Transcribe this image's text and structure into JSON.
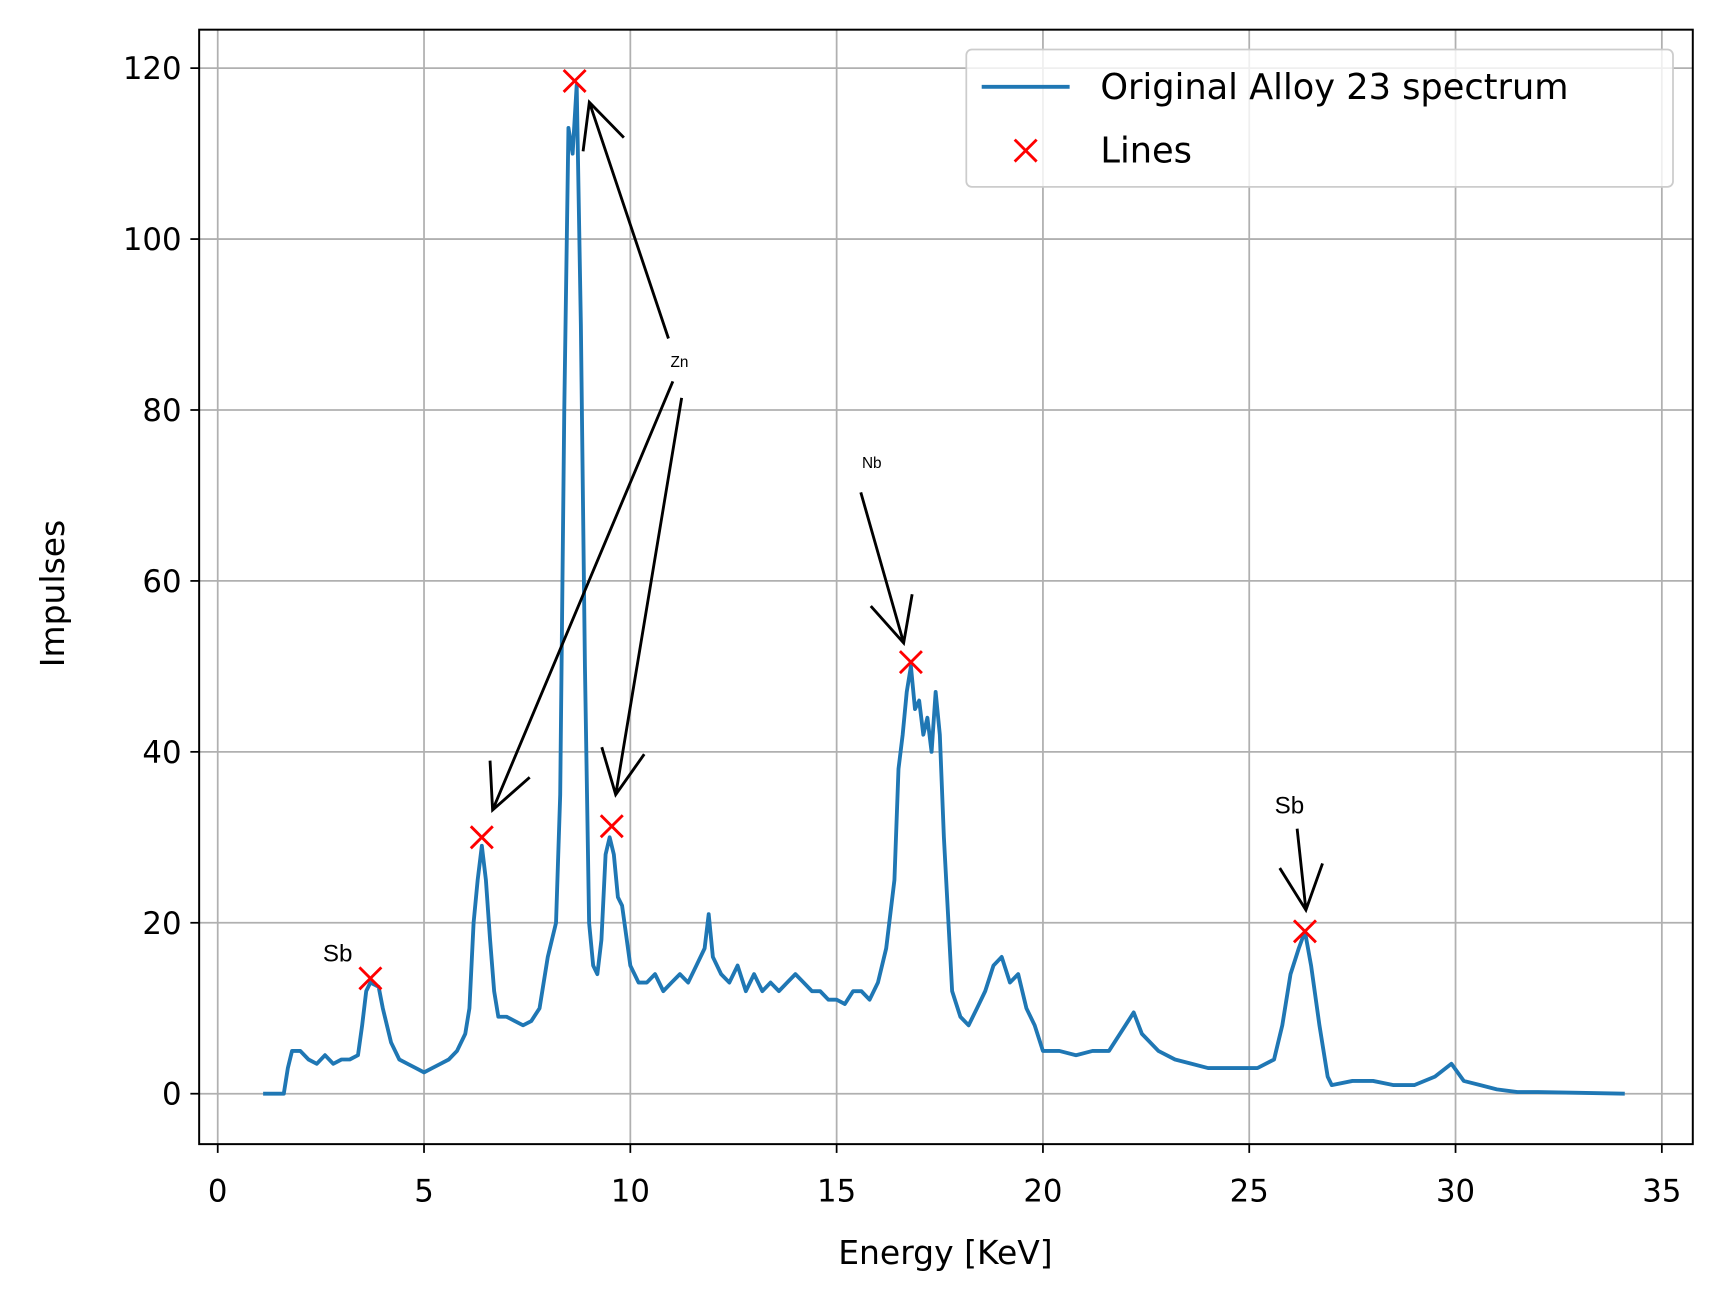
{
  "chart_data": {
    "type": "line",
    "xlabel": "Energy [KeV]",
    "ylabel": "Impulses",
    "xlim": [
      -0.45,
      35.75
    ],
    "ylim": [
      -5.9,
      124.5
    ],
    "xticks": [
      0,
      5,
      10,
      15,
      20,
      25,
      30,
      35
    ],
    "yticks": [
      0,
      20,
      40,
      60,
      80,
      100,
      120
    ],
    "grid": true,
    "legend": "upper right",
    "series": [
      {
        "name": "Original Alloy 23 spectrum",
        "color": "#1f77b4",
        "x": [
          1.1,
          1.5,
          1.6,
          1.7,
          1.8,
          2.0,
          2.2,
          2.4,
          2.6,
          2.8,
          3.0,
          3.2,
          3.4,
          3.5,
          3.6,
          3.7,
          3.9,
          4.0,
          4.2,
          4.4,
          4.6,
          4.8,
          5.0,
          5.2,
          5.4,
          5.6,
          5.8,
          6.0,
          6.1,
          6.2,
          6.3,
          6.4,
          6.5,
          6.6,
          6.7,
          6.8,
          7.0,
          7.2,
          7.4,
          7.6,
          7.8,
          8.0,
          8.2,
          8.3,
          8.4,
          8.5,
          8.6,
          8.7,
          8.8,
          8.9,
          9.0,
          9.1,
          9.2,
          9.3,
          9.4,
          9.5,
          9.6,
          9.7,
          9.8,
          10.0,
          10.2,
          10.4,
          10.6,
          10.8,
          11.0,
          11.2,
          11.4,
          11.6,
          11.8,
          11.9,
          12.0,
          12.2,
          12.4,
          12.6,
          12.8,
          13.0,
          13.2,
          13.4,
          13.6,
          13.8,
          14.0,
          14.2,
          14.4,
          14.6,
          14.8,
          15.0,
          15.2,
          15.4,
          15.6,
          15.8,
          16.0,
          16.2,
          16.4,
          16.5,
          16.6,
          16.7,
          16.8,
          16.9,
          17.0,
          17.1,
          17.2,
          17.3,
          17.4,
          17.5,
          17.6,
          17.8,
          18.0,
          18.2,
          18.4,
          18.6,
          18.8,
          19.0,
          19.2,
          19.4,
          19.6,
          19.8,
          20.0,
          20.4,
          20.8,
          21.2,
          21.6,
          22.0,
          22.2,
          22.4,
          22.8,
          23.2,
          23.6,
          24.0,
          24.4,
          24.8,
          25.2,
          25.6,
          25.8,
          26.0,
          26.2,
          26.35,
          26.5,
          26.7,
          26.9,
          27.0,
          27.5,
          28.0,
          28.5,
          29.0,
          29.5,
          29.9,
          30.2,
          30.6,
          31.0,
          31.5,
          32.0,
          33.0,
          34.1
        ],
        "values": [
          0,
          0,
          0,
          3,
          5,
          5,
          4,
          3.5,
          4.5,
          3.5,
          4,
          4,
          4.5,
          8,
          12,
          13,
          12.5,
          10,
          6,
          4,
          3.5,
          3,
          2.5,
          3,
          3.5,
          4,
          5,
          7,
          10,
          20,
          25,
          29,
          25,
          18,
          12,
          9,
          9,
          8.5,
          8,
          8.5,
          10,
          16,
          20,
          35,
          80,
          113,
          110,
          118,
          90,
          50,
          20,
          15,
          14,
          18,
          28,
          30,
          28,
          23,
          22,
          15,
          13,
          13,
          14,
          12,
          13,
          14,
          13,
          15,
          17,
          21,
          16,
          14,
          13,
          15,
          12,
          14,
          12,
          13,
          12,
          13,
          14,
          13,
          12,
          12,
          11,
          11,
          10.5,
          12,
          12,
          11,
          13,
          17,
          25,
          38,
          42,
          47,
          50,
          45,
          46,
          42,
          44,
          40,
          47,
          42,
          30,
          12,
          9,
          8,
          10,
          12,
          15,
          16,
          13,
          14,
          10,
          8,
          5,
          5,
          4.5,
          5,
          5,
          8,
          9.5,
          7,
          5,
          4,
          3.5,
          3,
          3,
          3,
          3,
          4,
          8,
          14,
          17,
          19,
          15,
          8,
          2,
          1,
          1.5,
          1.5,
          1,
          1,
          2,
          3.5,
          1.5,
          1,
          0.5,
          0.2,
          0.2,
          0.1,
          0
        ]
      },
      {
        "name": "Lines",
        "color": "#ff0000",
        "marker": "x",
        "x": [
          3.7,
          6.4,
          8.65,
          9.55,
          16.8,
          26.35
        ],
        "values": [
          13.5,
          30,
          118.5,
          31.3,
          50.5,
          19
        ]
      }
    ],
    "annotations": [
      "Sb",
      "Zn",
      "Nb",
      "Sb"
    ]
  }
}
